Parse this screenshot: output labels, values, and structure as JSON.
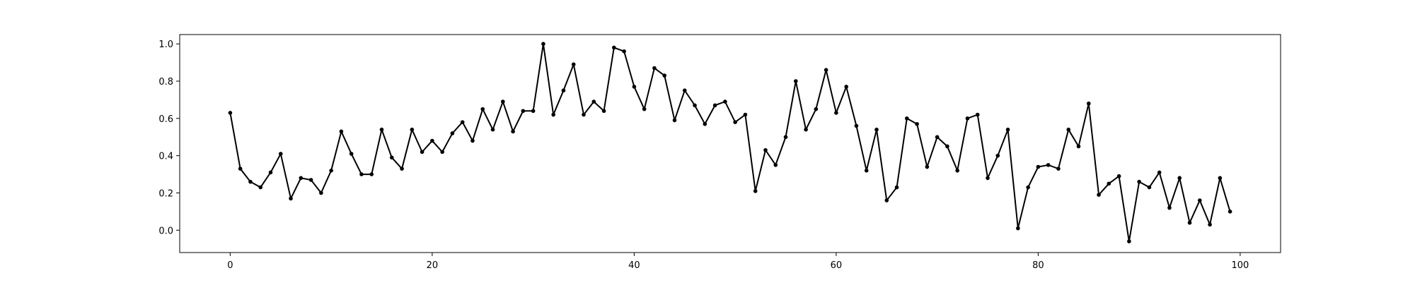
{
  "chart_data": {
    "type": "line",
    "title": "",
    "xlabel": "",
    "ylabel": "",
    "xlim": [
      -5,
      104
    ],
    "ylim": [
      -0.12,
      1.05
    ],
    "xticks": [
      0,
      20,
      40,
      60,
      80,
      100
    ],
    "xtick_labels": [
      "0",
      "20",
      "40",
      "60",
      "80",
      "100"
    ],
    "yticks": [
      0.0,
      0.2,
      0.4,
      0.6,
      0.8,
      1.0
    ],
    "ytick_labels": [
      "0.0",
      "0.2",
      "0.4",
      "0.6",
      "0.8",
      "1.0"
    ],
    "grid": false,
    "line_color": "#000000",
    "marker": "dot",
    "x": [
      0,
      1,
      2,
      3,
      4,
      5,
      6,
      7,
      8,
      9,
      10,
      11,
      12,
      13,
      14,
      15,
      16,
      17,
      18,
      19,
      20,
      21,
      22,
      23,
      24,
      25,
      26,
      27,
      28,
      29,
      30,
      31,
      32,
      33,
      34,
      35,
      36,
      37,
      38,
      39,
      40,
      41,
      42,
      43,
      44,
      45,
      46,
      47,
      48,
      49,
      50,
      51,
      52,
      53,
      54,
      55,
      56,
      57,
      58,
      59,
      60,
      61,
      62,
      63,
      64,
      65,
      66,
      67,
      68,
      69,
      70,
      71,
      72,
      73,
      74,
      75,
      76,
      77,
      78,
      79,
      80,
      81,
      82,
      83,
      84,
      85,
      86,
      87,
      88,
      89,
      90,
      91,
      92,
      93,
      94,
      95,
      96,
      97,
      98,
      99
    ],
    "series": [
      {
        "values": [
          0.63,
          0.33,
          0.26,
          0.23,
          0.31,
          0.41,
          0.17,
          0.28,
          0.27,
          0.2,
          0.32,
          0.53,
          0.41,
          0.3,
          0.3,
          0.54,
          0.39,
          0.33,
          0.54,
          0.42,
          0.48,
          0.42,
          0.52,
          0.58,
          0.48,
          0.65,
          0.54,
          0.69,
          0.53,
          0.64,
          0.64,
          1.0,
          0.62,
          0.75,
          0.89,
          0.62,
          0.69,
          0.64,
          0.98,
          0.96,
          0.77,
          0.65,
          0.87,
          0.83,
          0.59,
          0.75,
          0.67,
          0.57,
          0.67,
          0.69,
          0.58,
          0.62,
          0.21,
          0.43,
          0.35,
          0.5,
          0.8,
          0.54,
          0.65,
          0.86,
          0.63,
          0.77,
          0.56,
          0.32,
          0.54,
          0.16,
          0.23,
          0.6,
          0.57,
          0.34,
          0.5,
          0.45,
          0.32,
          0.6,
          0.62,
          0.28,
          0.4,
          0.54,
          0.01,
          0.23,
          0.34,
          0.35,
          0.33,
          0.54,
          0.45,
          0.68,
          0.19,
          0.25,
          0.29,
          -0.06,
          0.26,
          0.23,
          0.31,
          0.12,
          0.28,
          0.04,
          0.16,
          0.03,
          0.28,
          0.1
        ]
      }
    ]
  }
}
